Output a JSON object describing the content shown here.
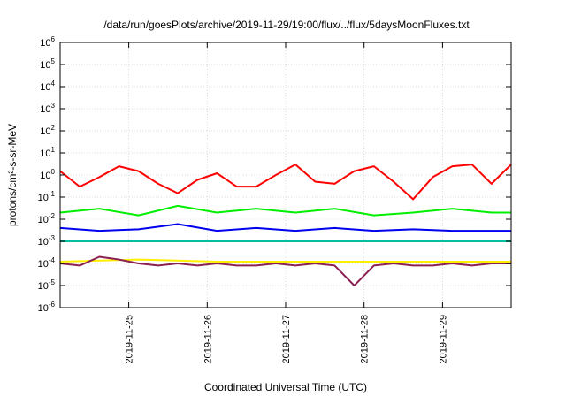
{
  "chart_data": {
    "type": "line",
    "title": "/data/run/goesPlots/archive/2019-11-29/19:00/flux/../flux/5daysMoonFluxes.txt",
    "xlabel": "Coordinated Universal Time (UTC)",
    "ylabel": "protons/cm²-s-sr-MeV",
    "yscale": "log",
    "ylim": [
      1e-06,
      1000000.0
    ],
    "y_ticks": [
      {
        "base": "10",
        "exp": "-6"
      },
      {
        "base": "10",
        "exp": "-5"
      },
      {
        "base": "10",
        "exp": "-4"
      },
      {
        "base": "10",
        "exp": "-3"
      },
      {
        "base": "10",
        "exp": "-2"
      },
      {
        "base": "10",
        "exp": "-1"
      },
      {
        "base": "10",
        "exp": "0"
      },
      {
        "base": "10",
        "exp": "1"
      },
      {
        "base": "10",
        "exp": "2"
      },
      {
        "base": "10",
        "exp": "3"
      },
      {
        "base": "10",
        "exp": "4"
      },
      {
        "base": "10",
        "exp": "5"
      },
      {
        "base": "10",
        "exp": "6"
      }
    ],
    "xlim": [
      "2019-11-24T03:00",
      "2019-11-29T21:00"
    ],
    "x_ticks": [
      "2019-11-25",
      "2019-11-26",
      "2019-11-27",
      "2019-11-28",
      "2019-11-29"
    ],
    "grid": true,
    "series": [
      {
        "color": "#ff0000",
        "x": [
          "2019-11-24T03:00",
          "2019-11-24T09:00",
          "2019-11-24T15:00",
          "2019-11-24T21:00",
          "2019-11-25T03:00",
          "2019-11-25T09:00",
          "2019-11-25T15:00",
          "2019-11-25T21:00",
          "2019-11-26T03:00",
          "2019-11-26T09:00",
          "2019-11-26T15:00",
          "2019-11-26T21:00",
          "2019-11-27T03:00",
          "2019-11-27T09:00",
          "2019-11-27T15:00",
          "2019-11-27T21:00",
          "2019-11-28T03:00",
          "2019-11-28T09:00",
          "2019-11-28T15:00",
          "2019-11-28T21:00",
          "2019-11-29T03:00",
          "2019-11-29T09:00",
          "2019-11-29T15:00",
          "2019-11-29T21:00"
        ],
        "y": [
          1.5,
          0.3,
          0.8,
          2.5,
          1.5,
          0.4,
          0.15,
          0.6,
          1.2,
          0.3,
          0.3,
          1.0,
          3.0,
          0.5,
          0.4,
          1.5,
          2.5,
          0.5,
          0.08,
          0.8,
          2.5,
          3.0,
          0.4,
          3.0
        ]
      },
      {
        "color": "#00ee00",
        "x": [
          "2019-11-24T03:00",
          "2019-11-24T15:00",
          "2019-11-25T03:00",
          "2019-11-25T15:00",
          "2019-11-26T03:00",
          "2019-11-26T15:00",
          "2019-11-27T03:00",
          "2019-11-27T15:00",
          "2019-11-28T03:00",
          "2019-11-28T15:00",
          "2019-11-29T03:00",
          "2019-11-29T15:00",
          "2019-11-29T21:00"
        ],
        "y": [
          0.02,
          0.03,
          0.015,
          0.04,
          0.02,
          0.03,
          0.02,
          0.03,
          0.015,
          0.02,
          0.03,
          0.02,
          0.02
        ]
      },
      {
        "color": "#0000ee",
        "x": [
          "2019-11-24T03:00",
          "2019-11-24T15:00",
          "2019-11-25T03:00",
          "2019-11-25T15:00",
          "2019-11-26T03:00",
          "2019-11-26T15:00",
          "2019-11-27T03:00",
          "2019-11-27T15:00",
          "2019-11-28T03:00",
          "2019-11-28T15:00",
          "2019-11-29T03:00",
          "2019-11-29T15:00",
          "2019-11-29T21:00"
        ],
        "y": [
          0.004,
          0.003,
          0.0035,
          0.006,
          0.003,
          0.004,
          0.003,
          0.004,
          0.003,
          0.0035,
          0.003,
          0.003,
          0.003
        ]
      },
      {
        "color": "#00c0a0",
        "x": [
          "2019-11-24T03:00",
          "2019-11-25T03:00",
          "2019-11-26T03:00",
          "2019-11-27T03:00",
          "2019-11-28T03:00",
          "2019-11-29T03:00",
          "2019-11-29T21:00"
        ],
        "y": [
          0.001,
          0.001,
          0.001,
          0.001,
          0.001,
          0.001,
          0.001
        ]
      },
      {
        "color": "#ffee00",
        "x": [
          "2019-11-24T03:00",
          "2019-11-25T03:00",
          "2019-11-26T03:00",
          "2019-11-27T03:00",
          "2019-11-28T03:00",
          "2019-11-29T03:00",
          "2019-11-29T21:00"
        ],
        "y": [
          0.00012,
          0.00015,
          0.00012,
          0.00012,
          0.00012,
          0.00012,
          0.00012
        ]
      },
      {
        "color": "#8b2252",
        "x": [
          "2019-11-24T03:00",
          "2019-11-24T09:00",
          "2019-11-24T15:00",
          "2019-11-24T21:00",
          "2019-11-25T03:00",
          "2019-11-25T09:00",
          "2019-11-25T15:00",
          "2019-11-25T21:00",
          "2019-11-26T03:00",
          "2019-11-26T09:00",
          "2019-11-26T15:00",
          "2019-11-26T21:00",
          "2019-11-27T03:00",
          "2019-11-27T09:00",
          "2019-11-27T15:00",
          "2019-11-27T21:00",
          "2019-11-28T03:00",
          "2019-11-28T09:00",
          "2019-11-28T15:00",
          "2019-11-28T21:00",
          "2019-11-29T03:00",
          "2019-11-29T09:00",
          "2019-11-29T15:00",
          "2019-11-29T21:00"
        ],
        "y": [
          0.0001,
          8e-05,
          0.0002,
          0.00015,
          0.0001,
          8e-05,
          0.0001,
          8e-05,
          0.0001,
          8e-05,
          8e-05,
          0.0001,
          8e-05,
          0.0001,
          8e-05,
          1e-05,
          8e-05,
          0.0001,
          8e-05,
          8e-05,
          0.0001,
          8e-05,
          0.0001,
          0.0001
        ]
      }
    ]
  }
}
